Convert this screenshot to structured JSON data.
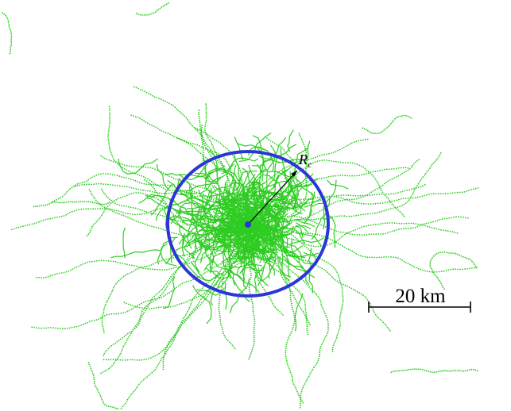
{
  "map": {
    "network_color": "#2ecc22",
    "circle_color": "#2b35d8",
    "center_color": "#2b35d8",
    "annotation_color": "#000000",
    "radius_label": {
      "main": "R",
      "sub": "c"
    },
    "scale_bar": {
      "label": "20 km"
    }
  }
}
